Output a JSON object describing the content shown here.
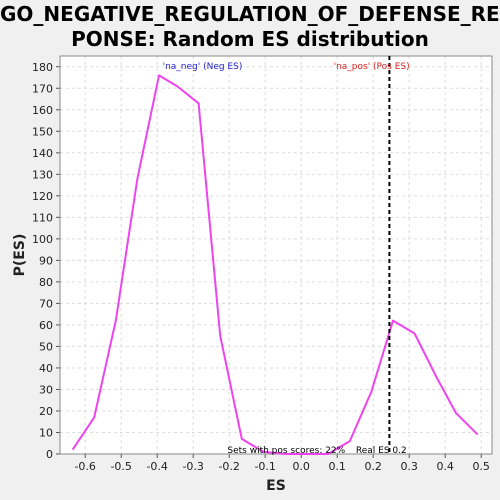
{
  "chart_data": {
    "type": "line",
    "title_lines": [
      "GO_NEGATIVE_REGULATION_OF_DEFENSE_RES",
      "PONSE: Random ES distribution"
    ],
    "xlabel": "ES",
    "ylabel": "P(ES)",
    "xlim": [
      -0.67,
      0.53
    ],
    "ylim": [
      0,
      185
    ],
    "x_ticks": [
      -0.6,
      -0.5,
      -0.4,
      -0.3,
      -0.2,
      -0.1,
      0.0,
      0.1,
      0.2,
      0.3,
      0.4,
      0.5
    ],
    "x_tick_labels": [
      "-0.6",
      "-0.5",
      "-0.4",
      "-0.3",
      "-0.2",
      "-0.1",
      "0.0",
      "0.1",
      "0.2",
      "0.3",
      "0.4",
      "0.5"
    ],
    "y_ticks": [
      0,
      10,
      20,
      30,
      40,
      50,
      60,
      70,
      80,
      90,
      100,
      110,
      120,
      130,
      140,
      150,
      160,
      170,
      180
    ],
    "y_tick_labels": [
      "0",
      "10",
      "20",
      "30",
      "40",
      "50",
      "60",
      "70",
      "80",
      "90",
      "100",
      "110",
      "120",
      "130",
      "140",
      "150",
      "160",
      "170",
      "180"
    ],
    "grid": true,
    "series": [
      {
        "color": "#ee44ee",
        "x": [
          -0.635,
          -0.575,
          -0.515,
          -0.455,
          -0.395,
          -0.345,
          -0.285,
          -0.225,
          -0.165,
          -0.105,
          -0.045,
          0.015,
          0.075,
          0.135,
          0.195,
          0.255,
          0.315,
          0.375,
          0.43,
          0.49
        ],
        "y": [
          2,
          17,
          62,
          128,
          176,
          171,
          163,
          55,
          7,
          1,
          0,
          0,
          0,
          6,
          29,
          62,
          56,
          36,
          19,
          9
        ]
      }
    ],
    "real_es": {
      "x": 0.245,
      "color": "#000000"
    },
    "annotations": {
      "neg_label": {
        "text": "'na_neg' (Neg ES)",
        "color": "#2222cc"
      },
      "pos_label": {
        "text": "'na_pos' (Pos ES)",
        "color": "#dd2222"
      },
      "bottom_left": {
        "text": "Sets with pos scores: 22%"
      },
      "bottom_right": {
        "text": "Real ES 0.2"
      }
    },
    "colors": {
      "plot_background": "#ffffff",
      "page_background": "#f0f0f0",
      "grid": "#dcdcdc"
    }
  }
}
